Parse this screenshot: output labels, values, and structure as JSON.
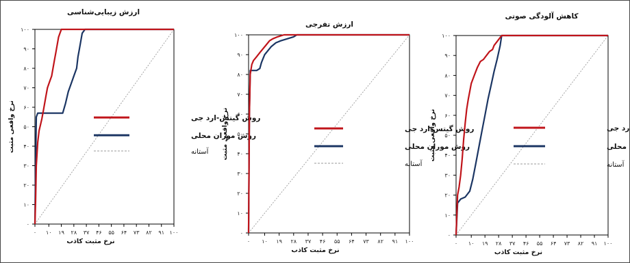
{
  "colors": {
    "series1": "#c0141a",
    "series2": "#1b3563",
    "baseline": "#9a9a9a"
  },
  "chart_data": [
    {
      "type": "line",
      "title": "ارزش زیبایی‌شناسی",
      "xlabel": "نرخ مثبت کاذب",
      "ylabel": "نرخ واقعی مثبت",
      "xlim": [
        0,
        100
      ],
      "ylim": [
        0,
        100
      ],
      "x_ticks": [
        0,
        10,
        19,
        28,
        37,
        46,
        55,
        64,
        73,
        82,
        91,
        100
      ],
      "x_tick_labels": [
        "٠",
        "١٠",
        "١٩",
        "٢٨",
        "٣٧",
        "۴۶",
        "۵۵",
        "۶۴",
        "٧٣",
        "٨٢",
        "٩١",
        "١٠٠"
      ],
      "y_ticks": [
        0,
        10,
        20,
        30,
        40,
        50,
        60,
        70,
        80,
        90,
        100
      ],
      "y_tick_labels": [
        "٠",
        "١٠",
        "٢٠",
        "٣٠",
        "۴٠",
        "۵٠",
        "۶٠",
        "٧٠",
        "٨٠",
        "٩٠",
        "١٠٠"
      ],
      "legend": [
        "روش گیتس-ارد جی",
        "روش موران محلی",
        "آستانه"
      ],
      "series": [
        {
          "name": "روش گیتس-ارد جی",
          "x": [
            0,
            0.5,
            1,
            2,
            3,
            4,
            5,
            6,
            7,
            8,
            9,
            10,
            11,
            12,
            13,
            14,
            15,
            16,
            17,
            18,
            19,
            21,
            25,
            30,
            100
          ],
          "y": [
            0,
            12,
            30,
            42,
            48,
            51,
            54,
            58,
            62,
            66,
            70,
            72,
            74,
            76,
            80,
            84,
            88,
            92,
            96,
            98,
            100,
            100,
            100,
            100,
            100
          ]
        },
        {
          "name": "روش موران محلی",
          "x": [
            0,
            0.5,
            1,
            2,
            5,
            10,
            15,
            20,
            22,
            24,
            26,
            28,
            30,
            31,
            32,
            33,
            34,
            36,
            100
          ],
          "y": [
            0,
            30,
            55,
            57,
            57,
            57,
            57,
            57,
            62,
            68,
            72,
            76,
            80,
            86,
            90,
            94,
            98,
            100,
            100
          ]
        },
        {
          "name": "آستانه",
          "x": [
            0,
            100
          ],
          "y": [
            0,
            100
          ]
        }
      ]
    },
    {
      "type": "line",
      "title": "ارزش تفرجی",
      "xlabel": "نرخ مثبت کاذب",
      "ylabel": "نرخ واقعی مثبت",
      "xlim": [
        0,
        100
      ],
      "ylim": [
        0,
        100
      ],
      "x_ticks": [
        0,
        10,
        19,
        28,
        37,
        46,
        55,
        64,
        73,
        82,
        91,
        100
      ],
      "x_tick_labels": [
        "٠",
        "١٠",
        "١٩",
        "٢٨",
        "٣٧",
        "۴۶",
        "۵۵",
        "۶۴",
        "٧٣",
        "٨٢",
        "٩١",
        "١٠٠"
      ],
      "y_ticks": [
        0,
        10,
        20,
        30,
        40,
        50,
        60,
        70,
        80,
        90,
        100
      ],
      "y_tick_labels": [
        "٠",
        "١٠",
        "٢٠",
        "٣٠",
        "۴٠",
        "۵٠",
        "۶٠",
        "٧٠",
        "٨٠",
        "٩٠",
        "١٠٠"
      ],
      "legend": [
        "روش گیتس-ارد جی",
        "روش موران محلی",
        "آستانه"
      ],
      "series": [
        {
          "name": "روش گیتس-ارد جی",
          "x": [
            0,
            0.5,
            1,
            2,
            3,
            5,
            7,
            9,
            11,
            13,
            15,
            18,
            22,
            28,
            100
          ],
          "y": [
            0,
            60,
            80,
            85,
            87,
            89,
            91,
            93,
            95,
            97,
            98,
            99,
            100,
            100,
            100
          ]
        },
        {
          "name": "روش موران محلی",
          "x": [
            0,
            0.5,
            1,
            3,
            5,
            7,
            8,
            9,
            10,
            12,
            14,
            17,
            20,
            24,
            28,
            30,
            100
          ],
          "y": [
            0,
            60,
            82,
            82,
            82,
            83,
            86,
            88,
            90,
            92,
            94,
            96,
            97,
            98,
            99,
            100,
            100
          ]
        },
        {
          "name": "آستانه",
          "x": [
            0,
            100
          ],
          "y": [
            0,
            100
          ]
        }
      ]
    },
    {
      "type": "line",
      "title": "کاهش آلودگی صوتی",
      "xlabel": "نرخ مثبت کاذب",
      "ylabel": "نرخ واقعی مثبت",
      "xlim": [
        0,
        100
      ],
      "ylim": [
        0,
        100
      ],
      "x_ticks": [
        0,
        10,
        19,
        28,
        37,
        46,
        55,
        64,
        73,
        82,
        91,
        100
      ],
      "x_tick_labels": [
        "٠",
        "١٠",
        "١٩",
        "٢٨",
        "٣٧",
        "۴۶",
        "۵۵",
        "۶۴",
        "٧٣",
        "٨٢",
        "٩١",
        "١٠٠"
      ],
      "y_ticks": [
        0,
        10,
        20,
        30,
        40,
        50,
        60,
        70,
        80,
        90,
        100
      ],
      "y_tick_labels": [
        "٠",
        "١٠",
        "٢٠",
        "٣٠",
        "۴٠",
        "۵٠",
        "۶٠",
        "٧٠",
        "٨٠",
        "٩٠",
        "١٠٠"
      ],
      "legend": [
        "روش گیتس-ارد جی",
        "روش موران محلی",
        "آستانه"
      ],
      "series": [
        {
          "name": "روش گیتس-ارد جی",
          "x": [
            0,
            1,
            2,
            3,
            4,
            5,
            6,
            7,
            8,
            9,
            10,
            12,
            14,
            16,
            18,
            20,
            22,
            24,
            25,
            26,
            28,
            30,
            35,
            100
          ],
          "y": [
            0,
            20,
            24,
            30,
            38,
            48,
            56,
            63,
            68,
            72,
            76,
            80,
            84,
            87,
            88,
            90,
            92,
            93,
            95,
            96,
            98,
            100,
            100,
            100
          ]
        },
        {
          "name": "روش موران محلی",
          "x": [
            0,
            1,
            3,
            6,
            9,
            11,
            13,
            15,
            17,
            19,
            21,
            23,
            25,
            27,
            29,
            30,
            100
          ],
          "y": [
            0,
            16,
            18,
            19,
            22,
            28,
            36,
            44,
            52,
            60,
            68,
            75,
            82,
            88,
            95,
            100,
            100
          ]
        },
        {
          "name": "آستانه",
          "x": [
            0,
            100
          ],
          "y": [
            0,
            100
          ]
        }
      ]
    }
  ]
}
